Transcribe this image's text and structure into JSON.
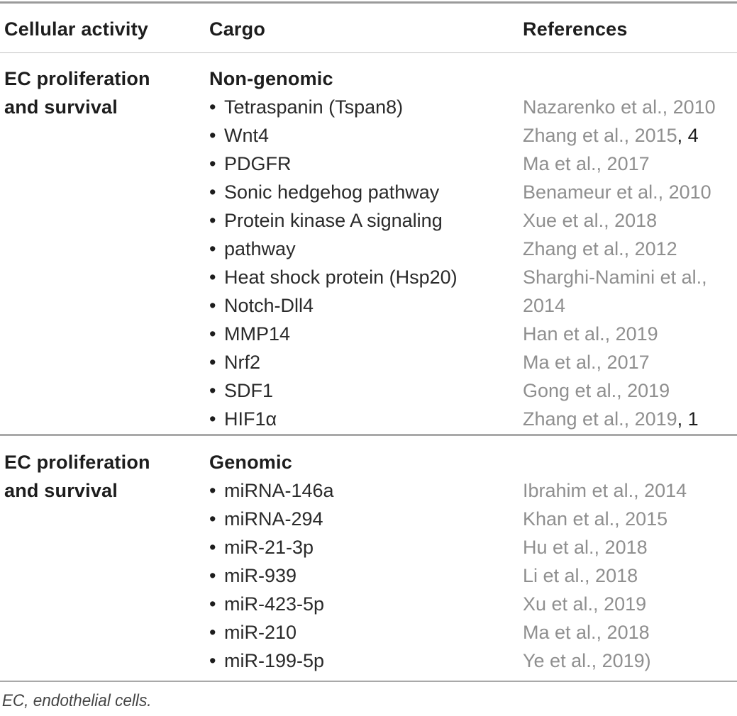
{
  "glyphs": {
    "bullet": "•"
  },
  "header": {
    "col_activity": "Cellular activity",
    "col_cargo": "Cargo",
    "col_references": "References"
  },
  "sections": [
    {
      "rows": [
        {
          "activity": "EC proliferation",
          "cargo_header": "Non-genomic"
        },
        {
          "activity": "and survival",
          "cargo": "Tetraspanin (Tspan8)",
          "ref": "Nazarenko et al., 2010"
        },
        {
          "cargo": "Wnt4",
          "ref": "Zhang et al., 2015",
          "ref_suffix": ", 4"
        },
        {
          "cargo": "PDGFR",
          "ref": "Ma et al., 2017"
        },
        {
          "cargo": "Sonic hedgehog pathway",
          "ref": "Benameur et al., 2010"
        },
        {
          "cargo": "Protein kinase A signaling",
          "ref": "Xue et al., 2018"
        },
        {
          "cargo": "pathway",
          "ref": "Zhang et al., 2012"
        },
        {
          "cargo": "Heat shock protein (Hsp20)",
          "ref": "Sharghi-Namini et al.,"
        },
        {
          "cargo": "Notch-Dll4",
          "ref": "2014"
        },
        {
          "cargo": "MMP14",
          "ref": "Han et al., 2019"
        },
        {
          "cargo": "Nrf2",
          "ref": "Ma et al., 2017"
        },
        {
          "cargo": "SDF1",
          "ref": "Gong et al., 2019"
        },
        {
          "cargo": "HIF1α",
          "ref": "Zhang et al., 2019",
          "ref_suffix": ", 1"
        }
      ]
    },
    {
      "rows": [
        {
          "activity": "EC proliferation",
          "cargo_header": "Genomic"
        },
        {
          "activity": "and survival",
          "cargo": "miRNA-146a",
          "ref": "Ibrahim et al., 2014"
        },
        {
          "cargo": "miRNA-294",
          "ref": "Khan et al., 2015"
        },
        {
          "cargo": "miR-21-3p",
          "ref": "Hu et al., 2018"
        },
        {
          "cargo": "miR-939",
          "ref": "Li et al., 2018"
        },
        {
          "cargo": "miR-423-5p",
          "ref": "Xu et al., 2019"
        },
        {
          "cargo": "miR-210",
          "ref": "Ma et al., 2018"
        },
        {
          "cargo": "miR-199-5p",
          "ref": "Ye et al., 2019)"
        }
      ]
    }
  ],
  "footer": {
    "note": "EC, endothelial cells."
  }
}
